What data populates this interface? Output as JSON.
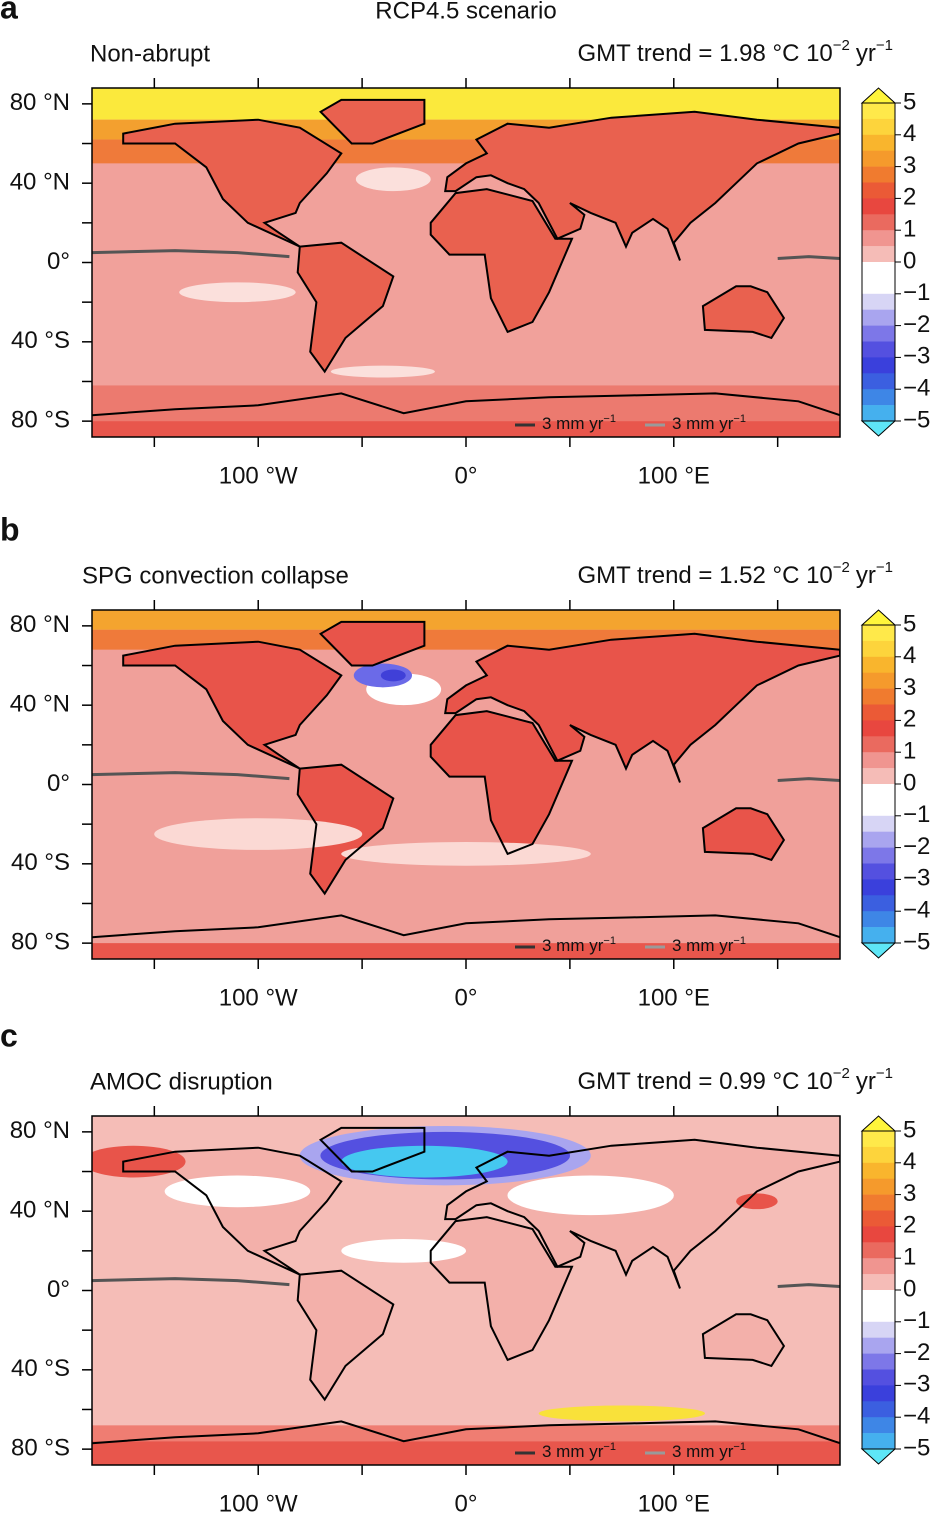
{
  "title": "RCP4.5 scenario",
  "chart_data": [
    {
      "type": "map",
      "letter": "a",
      "subtitle": "Non-abrupt",
      "gmt": {
        "text": "GMT trend = 1.98 °C 10",
        "exp1": "−2",
        "unit": "yr",
        "exp2": "−1"
      },
      "legend": [
        {
          "text": "3 mm yr",
          "exp": "−1",
          "color": "#333333"
        },
        {
          "text": "3 mm yr",
          "exp": "−1",
          "color": "#9a9a9a"
        }
      ]
    },
    {
      "type": "map",
      "letter": "b",
      "subtitle": "SPG convection collapse",
      "gmt": {
        "text": "GMT trend = 1.52 °C 10",
        "exp1": "−2",
        "unit": "yr",
        "exp2": "−1"
      },
      "legend": [
        {
          "text": "3 mm yr",
          "exp": "−1",
          "color": "#333333"
        },
        {
          "text": "3 mm yr",
          "exp": "−1",
          "color": "#9a9a9a"
        }
      ]
    },
    {
      "type": "map",
      "letter": "c",
      "subtitle": "AMOC disruption",
      "gmt": {
        "text": "GMT trend = 0.99 °C 10",
        "exp1": "−2",
        "unit": "yr",
        "exp2": "−1"
      },
      "legend": [
        {
          "text": "3 mm yr",
          "exp": "−1",
          "color": "#333333"
        },
        {
          "text": "3 mm yr",
          "exp": "−1",
          "color": "#9a9a9a"
        }
      ]
    }
  ],
  "axes": {
    "xlim": [
      -180,
      180
    ],
    "ylim": [
      -88,
      88
    ],
    "xticks": [
      {
        "value": -100,
        "label": "100 °W"
      },
      {
        "value": 0,
        "label": "0°"
      },
      {
        "value": 100,
        "label": "100 °E"
      }
    ],
    "xminor": [
      -150,
      -50,
      50,
      150
    ],
    "yticks": [
      {
        "value": 80,
        "label": "80 °N"
      },
      {
        "value": 40,
        "label": "40 °N"
      },
      {
        "value": 0,
        "label": "0°"
      },
      {
        "value": -40,
        "label": "40 °S"
      },
      {
        "value": -80,
        "label": "80 °S"
      }
    ],
    "yminor": [
      60,
      20,
      -20,
      -60
    ]
  },
  "colorbar": {
    "clim": [
      -5,
      5
    ],
    "ticks": [
      5,
      4,
      3,
      2,
      1,
      0,
      {
        "value": -1,
        "label": "−1"
      },
      {
        "value": -2,
        "label": "−2"
      },
      {
        "value": -3,
        "label": "−3"
      },
      {
        "value": -4,
        "label": "−4"
      },
      {
        "value": -5,
        "label": "−5"
      }
    ],
    "colors": [
      "#ffe94a",
      "#fdd43c",
      "#f9b52d",
      "#f59a2c",
      "#f07b2f",
      "#eb5a36",
      "#e8473f",
      "#ea6a5f",
      "#f09590",
      "#f5bcb7",
      "#ffffff",
      "#ffffff",
      "#d7d5f5",
      "#a9a5ef",
      "#7d77e8",
      "#5450e0",
      "#3a40dc",
      "#3b5fe0",
      "#3e86e6",
      "#45b0ee"
    ],
    "extend_colors": [
      "#fff53b",
      "#5ee6f7"
    ]
  }
}
